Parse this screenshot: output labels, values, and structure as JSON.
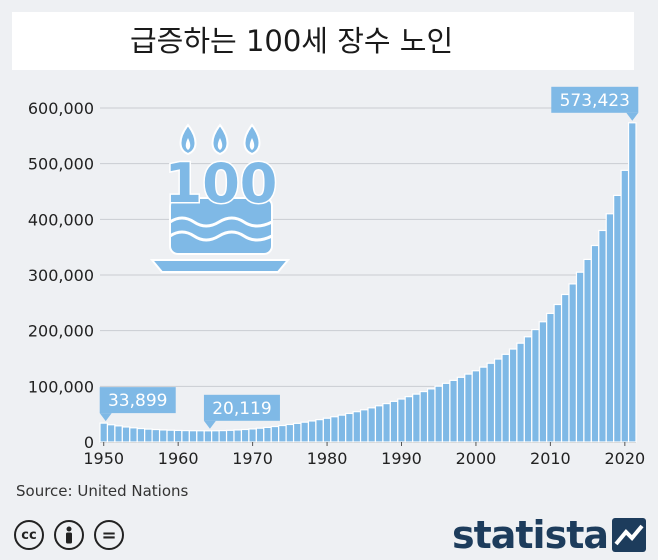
{
  "title": "급증하는 100세 장수 노인",
  "source": "Source: United Nations",
  "brand": "statista",
  "icons": {
    "cake": "birthday-cake-100-icon",
    "cc": "cc-icon",
    "by": "person-icon",
    "nd": "equals-icon",
    "brand_mark": "statista-logo-icon"
  },
  "license_badges": [
    "cc",
    "",
    "="
  ],
  "cake_text": "100",
  "colors": {
    "bar": "#7fb9e6",
    "bar_stroke": "#ffffff",
    "callout": "#7fb9e6",
    "grid": "#c9cdd2",
    "text": "#222222",
    "brand": "#1d3c5c"
  },
  "chart_data": {
    "type": "bar",
    "title": "급증하는 100세 장수 노인",
    "xlabel": "",
    "ylabel": "",
    "ylim": [
      0,
      600000
    ],
    "yticks": [
      0,
      100000,
      200000,
      300000,
      400000,
      500000,
      600000
    ],
    "ytick_labels": [
      "0",
      "100,000",
      "200,000",
      "300,000",
      "400,000",
      "500,000",
      "600,000"
    ],
    "xticks": [
      1950,
      1960,
      1970,
      1980,
      1990,
      2000,
      2010,
      2020
    ],
    "xtick_labels": [
      "1950",
      "1960",
      "1970",
      "1980",
      "1990",
      "2000",
      "2010",
      "2020"
    ],
    "grid": true,
    "annotations": [
      {
        "year": 1950,
        "label": "33,899"
      },
      {
        "year": 1964,
        "label": "20,119"
      },
      {
        "year": 2021,
        "label": "573,423"
      }
    ],
    "categories": [
      1950,
      1951,
      1952,
      1953,
      1954,
      1955,
      1956,
      1957,
      1958,
      1959,
      1960,
      1961,
      1962,
      1963,
      1964,
      1965,
      1966,
      1967,
      1968,
      1969,
      1970,
      1971,
      1972,
      1973,
      1974,
      1975,
      1976,
      1977,
      1978,
      1979,
      1980,
      1981,
      1982,
      1983,
      1984,
      1985,
      1986,
      1987,
      1988,
      1989,
      1990,
      1991,
      1992,
      1993,
      1994,
      1995,
      1996,
      1997,
      1998,
      1999,
      2000,
      2001,
      2002,
      2003,
      2004,
      2005,
      2006,
      2007,
      2008,
      2009,
      2010,
      2011,
      2012,
      2013,
      2014,
      2015,
      2016,
      2017,
      2018,
      2019,
      2020,
      2021
    ],
    "values": [
      33899,
      31000,
      29000,
      27000,
      25500,
      24200,
      23200,
      22400,
      21700,
      21200,
      20800,
      20500,
      20300,
      20200,
      20119,
      20200,
      20500,
      21000,
      21700,
      22500,
      23500,
      24800,
      26200,
      27800,
      29600,
      31500,
      33500,
      35600,
      37800,
      40200,
      42700,
      45400,
      48300,
      51300,
      54500,
      57900,
      61400,
      65100,
      69000,
      73000,
      77200,
      81500,
      86000,
      90600,
      95400,
      100300,
      105400,
      110700,
      116200,
      122000,
      128000,
      134500,
      141500,
      149000,
      157500,
      167000,
      177500,
      189000,
      202000,
      216000,
      231000,
      247000,
      265000,
      284000,
      305000,
      328000,
      353000,
      380000,
      410000,
      443000,
      488000,
      573423
    ]
  }
}
